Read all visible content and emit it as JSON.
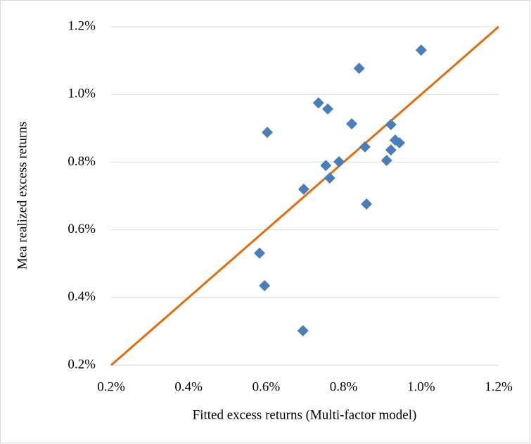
{
  "chart_data": {
    "type": "scatter",
    "x_label": "Fitted excess returns (Multi-factor model)",
    "y_label": "Mea realized excess returns",
    "xlim": [
      0.2,
      1.2
    ],
    "ylim": [
      0.2,
      1.2
    ],
    "xticks": [
      {
        "value": 0.2,
        "label": "0.2%"
      },
      {
        "value": 0.4,
        "label": "0.4%"
      },
      {
        "value": 0.6,
        "label": "0.6%"
      },
      {
        "value": 0.8,
        "label": "0.8%"
      },
      {
        "value": 1.0,
        "label": "1.0%"
      },
      {
        "value": 1.2,
        "label": "1.2%"
      }
    ],
    "yticks": [
      {
        "value": 0.2,
        "label": "0.2%"
      },
      {
        "value": 0.4,
        "label": "0.4%"
      },
      {
        "value": 0.6,
        "label": "0.6%"
      },
      {
        "value": 0.8,
        "label": "0.8%"
      },
      {
        "value": 1.0,
        "label": "1.0%"
      },
      {
        "value": 1.2,
        "label": "1.2%"
      }
    ],
    "grid": true,
    "series": [
      {
        "color": "#4a7ebb",
        "x": [
          1.0,
          0.84,
          0.735,
          0.759,
          0.603,
          0.821,
          0.922,
          0.933,
          0.944,
          0.855,
          0.922,
          0.911,
          0.788,
          0.754,
          0.764,
          0.697,
          0.859,
          0.583,
          0.596,
          0.695
        ],
        "values": [
          1.131,
          1.077,
          0.975,
          0.957,
          0.888,
          0.913,
          0.911,
          0.865,
          0.857,
          0.845,
          0.836,
          0.805,
          0.801,
          0.79,
          0.753,
          0.72,
          0.676,
          0.531,
          0.435,
          0.302
        ]
      }
    ],
    "fit_line": {
      "color": "#e36c0a",
      "x": [
        0.2,
        1.2
      ],
      "values": [
        0.2,
        1.2
      ]
    }
  }
}
